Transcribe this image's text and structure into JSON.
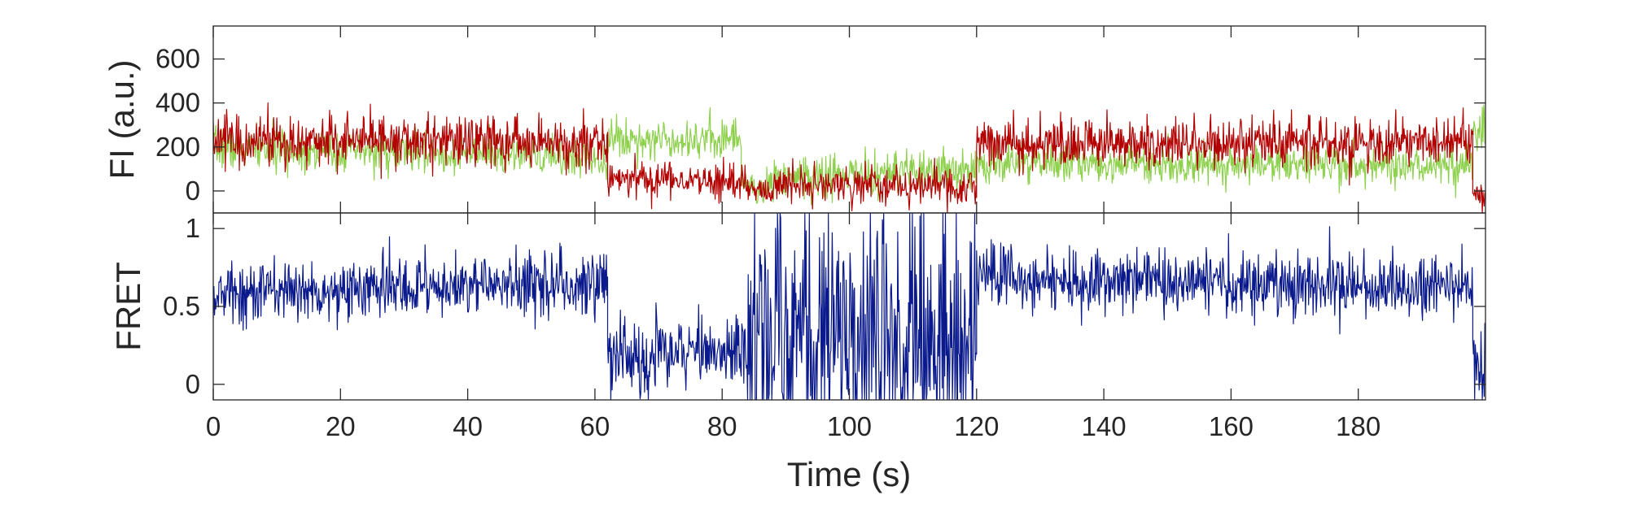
{
  "chart_data": [
    {
      "type": "line",
      "panel": "intensity",
      "xlabel": "",
      "ylabel": "FI (a.u.)",
      "xlim": [
        0,
        200
      ],
      "ylim": [
        -100,
        750
      ],
      "yticks": [
        0,
        200,
        400,
        600
      ],
      "yticklabels": [
        "0",
        "200",
        "400",
        "600"
      ],
      "colors": {
        "donor": "#8fd14f",
        "acceptor": "#b30000"
      },
      "series": [
        {
          "color": "#8fd14f",
          "segments": [
            {
              "x": [
                0,
                62
              ],
              "mean": [
                195,
                150
              ],
              "sd": 45
            },
            {
              "x": [
                62,
                83
              ],
              "mean": [
                235,
                240
              ],
              "sd": 45
            },
            {
              "x": [
                83,
                87
              ],
              "mean": [
                60,
                -30
              ],
              "sd": 30
            },
            {
              "x": [
                87,
                120
              ],
              "mean": [
                60,
                90
              ],
              "sd": 50
            },
            {
              "x": [
                120,
                198
              ],
              "mean": [
                130,
                115
              ],
              "sd": 45
            },
            {
              "x": [
                198,
                200
              ],
              "mean": [
                280,
                280
              ],
              "sd": 60
            }
          ]
        },
        {
          "color": "#b30000",
          "segments": [
            {
              "x": [
                0,
                62
              ],
              "mean": [
                230,
                220
              ],
              "sd": 60
            },
            {
              "x": [
                62,
                83
              ],
              "mean": [
                60,
                40
              ],
              "sd": 40
            },
            {
              "x": [
                83,
                88
              ],
              "mean": [
                30,
                -20
              ],
              "sd": 30
            },
            {
              "x": [
                88,
                120
              ],
              "mean": [
                30,
                20
              ],
              "sd": 45
            },
            {
              "x": [
                120,
                198
              ],
              "mean": [
                215,
                220
              ],
              "sd": 55
            },
            {
              "x": [
                198,
                200
              ],
              "mean": [
                -20,
                -20
              ],
              "sd": 25
            }
          ]
        }
      ]
    },
    {
      "type": "line",
      "panel": "fret",
      "xlabel": "Time (s)",
      "ylabel": "FRET",
      "xlim": [
        0,
        200
      ],
      "ylim": [
        -0.1,
        1.1
      ],
      "xticks": [
        0,
        20,
        40,
        60,
        80,
        100,
        120,
        140,
        160,
        180
      ],
      "xticklabels": [
        "0",
        "20",
        "40",
        "60",
        "80",
        "100",
        "120",
        "140",
        "160",
        "180"
      ],
      "yticks": [
        0,
        0.5,
        1
      ],
      "yticklabels": [
        "0",
        "0.5",
        "1"
      ],
      "colors": {
        "fret": "#0a1a8c"
      },
      "series": [
        {
          "color": "#0a1a8c",
          "segments": [
            {
              "x": [
                0,
                62
              ],
              "mean": [
                0.58,
                0.66
              ],
              "sd": 0.1
            },
            {
              "x": [
                62,
                84
              ],
              "mean": [
                0.18,
                0.22
              ],
              "sd": 0.12
            },
            {
              "x": [
                84,
                120
              ],
              "mean": [
                0.35,
                0.35
              ],
              "sd": 0.45
            },
            {
              "x": [
                120,
                198
              ],
              "mean": [
                0.68,
                0.62
              ],
              "sd": 0.1
            },
            {
              "x": [
                198,
                200
              ],
              "mean": [
                0.15,
                0.15
              ],
              "sd": 0.2
            }
          ]
        }
      ]
    }
  ]
}
